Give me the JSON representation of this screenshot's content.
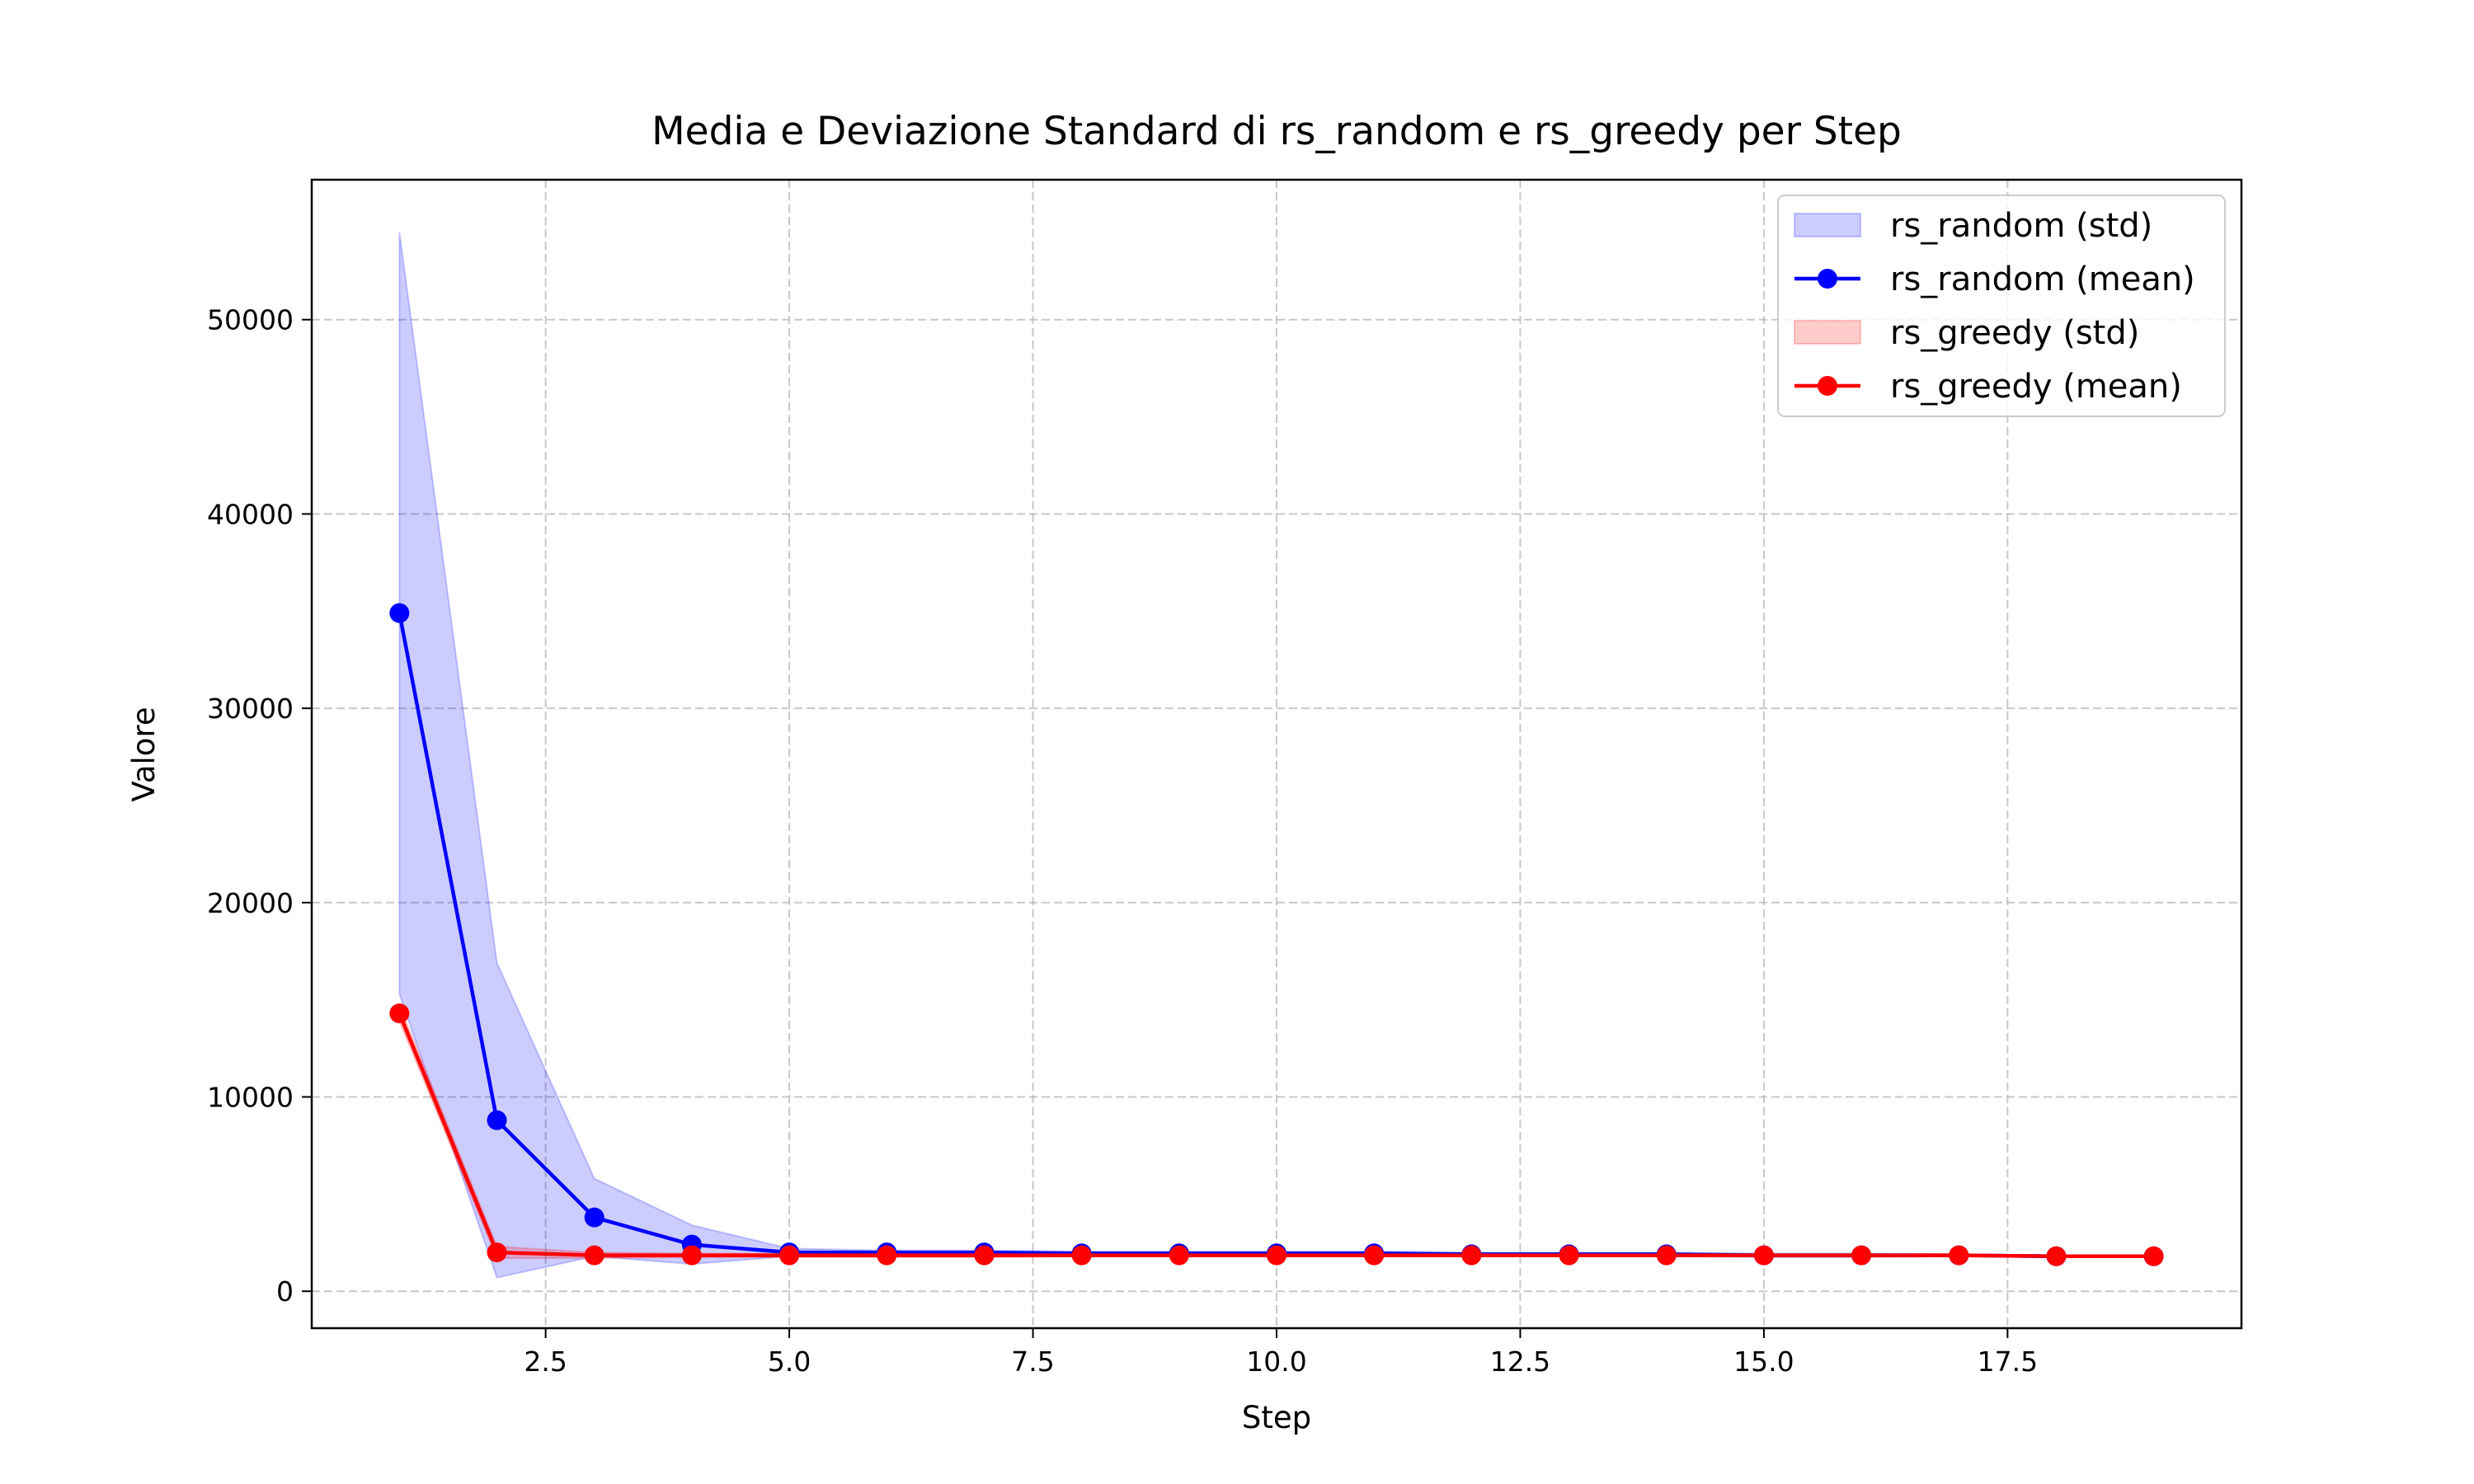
{
  "chart_data": {
    "type": "line",
    "title": "Media e Deviazione Standard di rs_random e rs_greedy per Step",
    "xlabel": "Step",
    "ylabel": "Valore",
    "xlim": [
      0.1,
      19.9
    ],
    "ylim": [
      -1900,
      57200
    ],
    "xticks": [
      2.5,
      5.0,
      7.5,
      10.0,
      12.5,
      15.0,
      17.5
    ],
    "xtick_labels": [
      "2.5",
      "5.0",
      "7.5",
      "10.0",
      "12.5",
      "15.0",
      "17.5"
    ],
    "yticks": [
      0,
      10000,
      20000,
      30000,
      40000,
      50000
    ],
    "ytick_labels": [
      "0",
      "10000",
      "20000",
      "30000",
      "40000",
      "50000"
    ],
    "grid": true,
    "legend_position": "top-right",
    "x": [
      1,
      2,
      3,
      4,
      5,
      6,
      7,
      8,
      9,
      10,
      11,
      12,
      13,
      14,
      15,
      16,
      17,
      18,
      19
    ],
    "series": [
      {
        "name": "rs_random (mean)",
        "band_name": "rs_random (std)",
        "color": "#0000ff",
        "band_color": "#0000ff",
        "values": [
          34900,
          8800,
          3800,
          2400,
          2000,
          2000,
          2000,
          1950,
          1950,
          1950,
          1950,
          1900,
          1900,
          1900,
          1850,
          1850,
          1850,
          1800,
          1800
        ],
        "std_upper": [
          54500,
          16900,
          5800,
          3400,
          2200,
          2100,
          2100,
          2050,
          2050,
          2050,
          2050,
          2000,
          2000,
          2000,
          1950,
          1950,
          1900,
          1850,
          1850
        ],
        "std_lower": [
          15300,
          700,
          1800,
          1400,
          1800,
          1900,
          1900,
          1850,
          1850,
          1850,
          1850,
          1800,
          1800,
          1800,
          1750,
          1750,
          1800,
          1750,
          1750
        ]
      },
      {
        "name": "rs_greedy (mean)",
        "band_name": "rs_greedy (std)",
        "color": "#ff0000",
        "band_color": "#ff0000",
        "values": [
          14300,
          2000,
          1850,
          1850,
          1850,
          1850,
          1850,
          1850,
          1850,
          1850,
          1850,
          1850,
          1850,
          1850,
          1850,
          1850,
          1850,
          1800,
          1800
        ],
        "std_upper": [
          14700,
          2300,
          2000,
          1950,
          1950,
          1950,
          1950,
          1900,
          1900,
          1900,
          1900,
          1900,
          1900,
          1900,
          1900,
          1900,
          1900,
          1850,
          1850
        ],
        "std_lower": [
          13900,
          1700,
          1700,
          1750,
          1750,
          1750,
          1750,
          1800,
          1800,
          1800,
          1800,
          1800,
          1800,
          1800,
          1800,
          1800,
          1800,
          1750,
          1750
        ]
      }
    ]
  }
}
